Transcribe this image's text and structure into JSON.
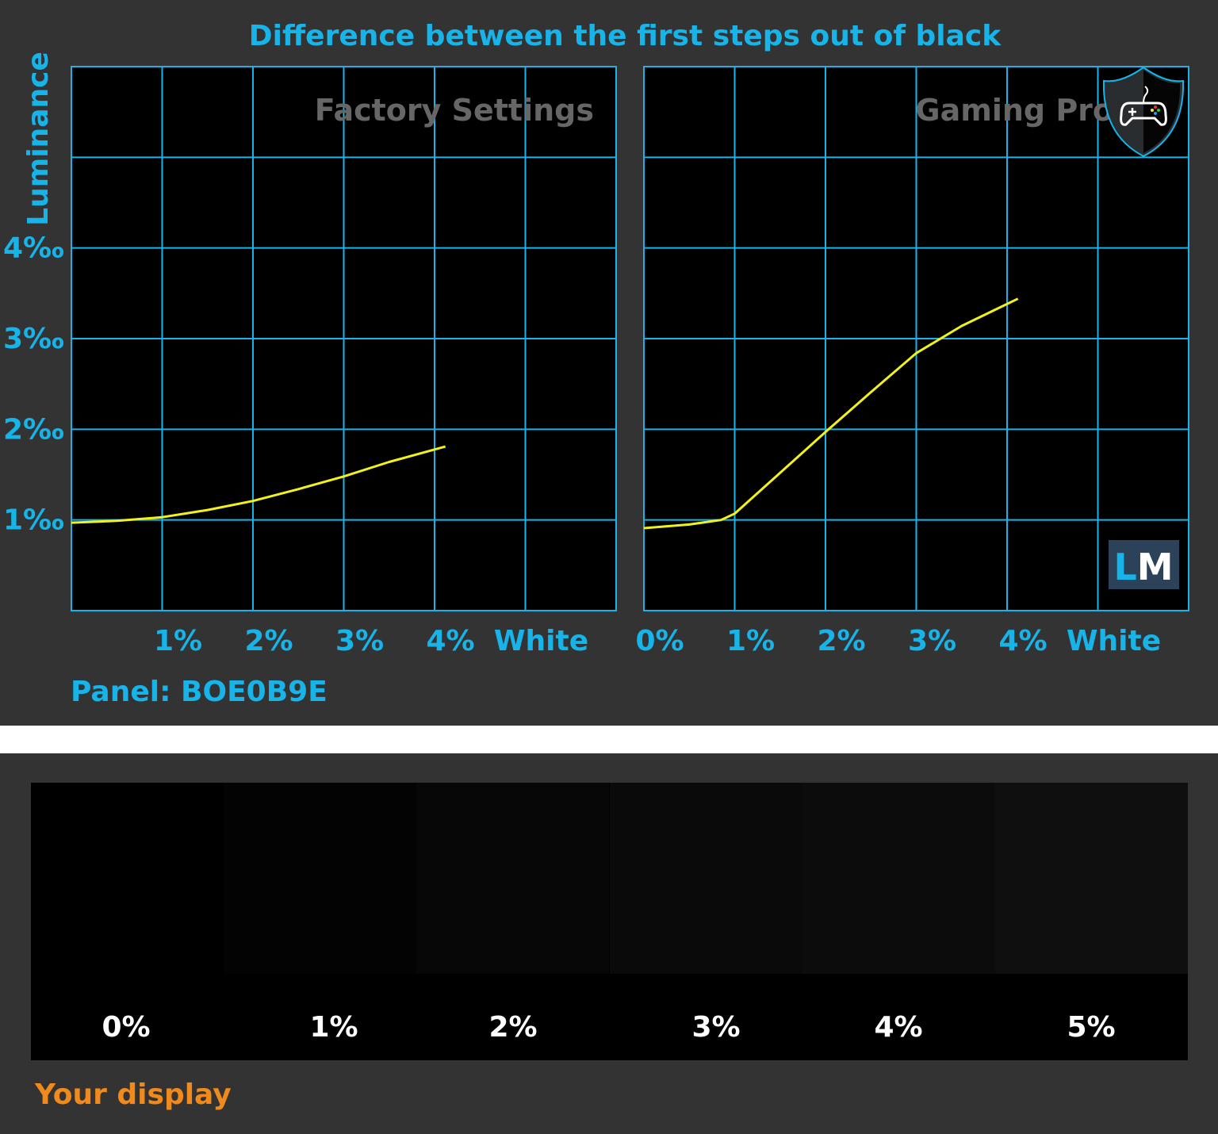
{
  "title": "Difference between the first steps out of black",
  "panel_label": "Panel: BOE0B9E",
  "colors": {
    "accent": "#17b4ea",
    "curve": "#f2f21a",
    "background": "#333333",
    "orange": "#f08a1c"
  },
  "chart_data": [
    {
      "type": "line",
      "subtitle": "Factory Settings",
      "ylabel": "Luminance",
      "x_ticks": [
        "1%",
        "2%",
        "3%",
        "4%",
        "White"
      ],
      "y_ticks": [
        "1‰",
        "2‰",
        "3‰",
        "4‰"
      ],
      "xlim": [
        0,
        6
      ],
      "ylim": [
        0,
        6
      ],
      "grid": true,
      "x": [
        0,
        0.5,
        1,
        1.5,
        2,
        2.5,
        3,
        3.5,
        4.12
      ],
      "y": [
        0.97,
        0.99,
        1.03,
        1.11,
        1.21,
        1.34,
        1.48,
        1.64,
        1.81
      ]
    },
    {
      "type": "line",
      "subtitle": "Gaming Profile",
      "icon": "gamepad-shield-icon",
      "x_ticks": [
        "0%",
        "1%",
        "2%",
        "3%",
        "4%",
        "White"
      ],
      "xlim": [
        0,
        6
      ],
      "ylim": [
        0,
        6
      ],
      "grid": true,
      "x": [
        0,
        0.5,
        0.85,
        1,
        1.5,
        2,
        2.5,
        3,
        3.5,
        4.12
      ],
      "y": [
        0.91,
        0.95,
        1.0,
        1.07,
        1.52,
        1.97,
        2.41,
        2.84,
        3.14,
        3.44
      ]
    }
  ],
  "logo": "LM",
  "display_test": {
    "patches": [
      {
        "label": "0%",
        "color": "#000000"
      },
      {
        "label": "1%",
        "color": "#030303"
      },
      {
        "label": "2%",
        "color": "#070707"
      },
      {
        "label": "3%",
        "color": "#0a0a0a"
      },
      {
        "label": "4%",
        "color": "#0c0c0c"
      },
      {
        "label": "5%",
        "color": "#0f0f0f"
      }
    ],
    "caption": "Your display"
  }
}
